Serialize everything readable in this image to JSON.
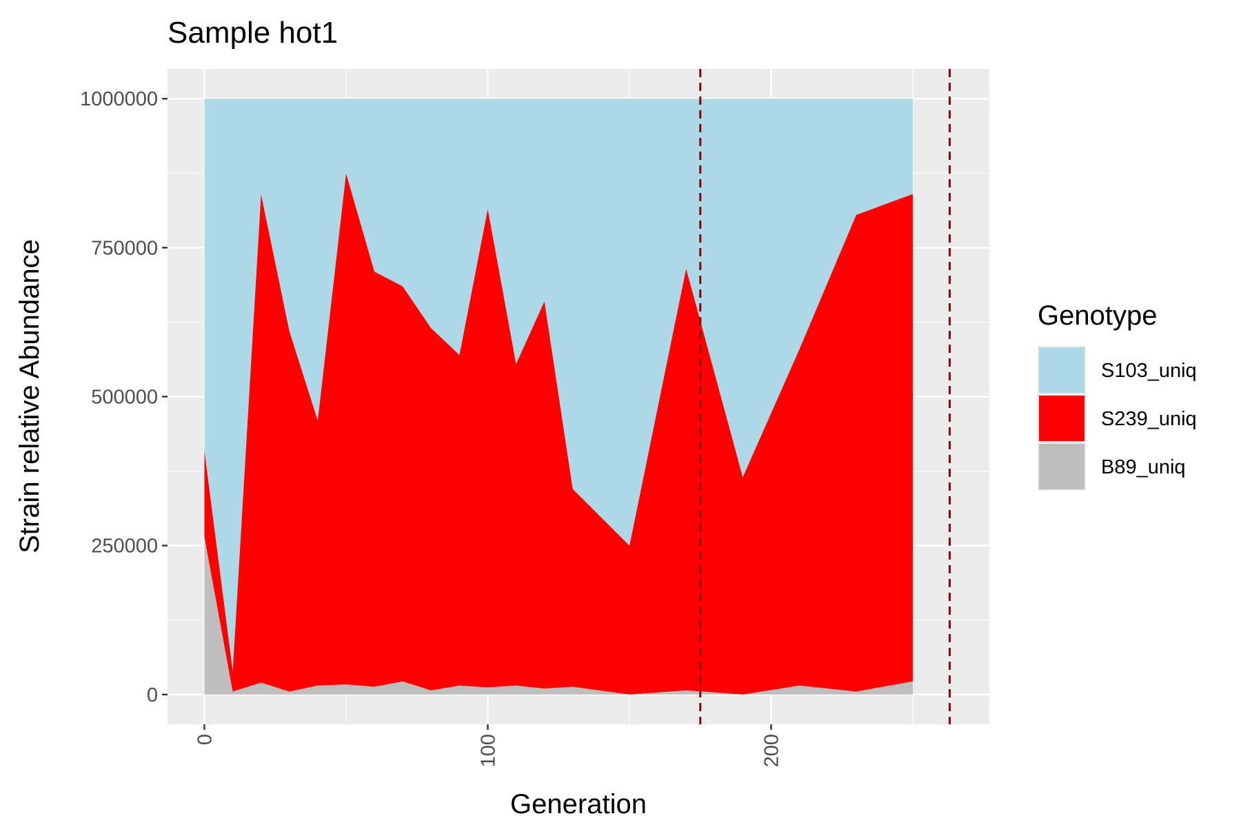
{
  "chart_data": {
    "type": "area",
    "title": "Sample hot1",
    "xlabel": "Generation",
    "ylabel": "Strain relative Abundance",
    "xlim": [
      -13,
      277
    ],
    "ylim": [
      -50000,
      1050000
    ],
    "x_ticks": [
      0,
      100,
      200
    ],
    "x_tick_labels": [
      "0",
      "100",
      "200"
    ],
    "y_ticks": [
      0,
      250000,
      500000,
      750000,
      1000000
    ],
    "y_tick_labels": [
      "0",
      "250000",
      "500000",
      "750000",
      "1000000"
    ],
    "grid": true,
    "stacked": true,
    "legend": {
      "title": "Genotype",
      "placement": "right"
    },
    "x": [
      0,
      10,
      20,
      30,
      40,
      50,
      60,
      70,
      80,
      90,
      100,
      110,
      120,
      130,
      150,
      170,
      190,
      210,
      230,
      250
    ],
    "series": [
      {
        "name": "S103_uniq",
        "color": "#add8e6",
        "values": [
          590000,
          960000,
          160000,
          390000,
          540000,
          125000,
          290000,
          315000,
          385000,
          430000,
          185000,
          445000,
          340000,
          655000,
          750000,
          285000,
          635000,
          420000,
          195000,
          160000
        ]
      },
      {
        "name": "S239_uniq",
        "color": "#ff0000",
        "values": [
          145000,
          35000,
          820000,
          605000,
          445000,
          858000,
          697000,
          663000,
          608000,
          555000,
          803000,
          540000,
          650000,
          332000,
          250000,
          708000,
          365000,
          565000,
          800000,
          818000
        ]
      },
      {
        "name": "B89_uniq",
        "color": "#bebebe",
        "values": [
          265000,
          5000,
          20000,
          5000,
          15000,
          17000,
          13000,
          22000,
          7000,
          15000,
          12000,
          15000,
          10000,
          13000,
          0,
          7000,
          0,
          15000,
          5000,
          22000
        ]
      }
    ],
    "vlines": [
      {
        "x": 175,
        "color": "#8b0000",
        "style": "dashed"
      },
      {
        "x": 263,
        "color": "#8b0000",
        "style": "dashed"
      }
    ]
  }
}
